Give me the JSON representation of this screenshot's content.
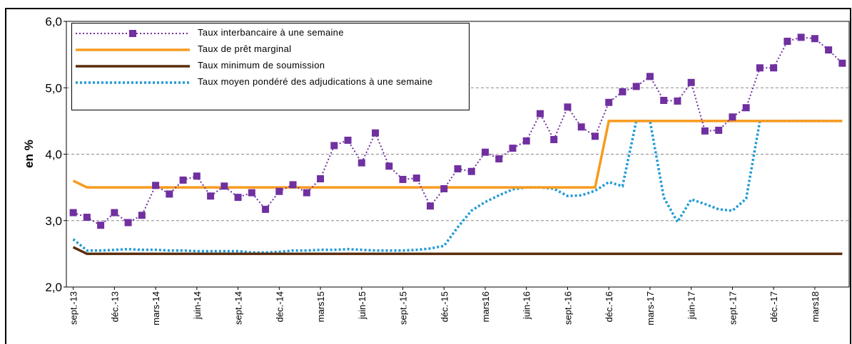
{
  "chart_data": {
    "type": "line",
    "y_label": "en %",
    "categories": [
      "sept.-13",
      null,
      null,
      "déc.-13",
      null,
      null,
      "mars-14",
      null,
      null,
      "juin-14",
      null,
      null,
      "sept.-14",
      null,
      null,
      "déc.-14",
      null,
      null,
      "mars15",
      null,
      null,
      "juin-15",
      null,
      null,
      "sept.-15",
      null,
      null,
      "déc.-15",
      null,
      null,
      "mars16",
      null,
      null,
      "juin-16",
      null,
      null,
      "sept.-16",
      null,
      null,
      "déc.-16",
      null,
      null,
      "mars-17",
      null,
      null,
      "juin-17",
      null,
      null,
      "sept.-17",
      null,
      null,
      "déc.-17",
      null,
      null,
      "mars18",
      null,
      null
    ],
    "ylim": [
      2,
      6
    ],
    "yticks": [
      {
        "value": 2,
        "label": "2,0"
      },
      {
        "value": 3,
        "label": "3,0"
      },
      {
        "value": 4,
        "label": "4,0"
      },
      {
        "value": 5,
        "label": "5,0"
      },
      {
        "value": 6,
        "label": "6,0"
      }
    ],
    "grid": true,
    "series": [
      {
        "name": "Taux interbancaire à une semaine",
        "color": "#7030a0",
        "style": "dotted-markers",
        "values": [
          3.12,
          3.05,
          2.93,
          3.12,
          2.97,
          3.08,
          3.53,
          3.4,
          3.61,
          3.67,
          3.37,
          3.52,
          3.35,
          3.42,
          3.17,
          3.44,
          3.54,
          3.42,
          3.63,
          4.13,
          4.21,
          3.87,
          4.32,
          3.82,
          3.62,
          3.64,
          3.22,
          3.48,
          3.78,
          3.74,
          4.03,
          3.93,
          4.09,
          4.2,
          4.61,
          4.22,
          4.71,
          4.41,
          4.27,
          4.78,
          4.94,
          5.02,
          5.17,
          4.81,
          4.8,
          5.08,
          4.35,
          4.36,
          4.56,
          4.7,
          5.3,
          5.3,
          5.7,
          5.76,
          5.74,
          5.57,
          5.37
        ]
      },
      {
        "name": "Taux de prêt marginal",
        "color": "#f79b1e",
        "style": "solid",
        "values": [
          3.6,
          3.5,
          3.5,
          3.5,
          3.5,
          3.5,
          3.5,
          3.5,
          3.5,
          3.5,
          3.5,
          3.5,
          3.5,
          3.5,
          3.5,
          3.5,
          3.5,
          3.5,
          3.5,
          3.5,
          3.5,
          3.5,
          3.5,
          3.5,
          3.5,
          3.5,
          3.5,
          3.5,
          3.5,
          3.5,
          3.5,
          3.5,
          3.5,
          3.5,
          3.5,
          3.5,
          3.5,
          3.5,
          3.5,
          4.5,
          4.5,
          4.5,
          4.5,
          4.5,
          4.5,
          4.5,
          4.5,
          4.5,
          4.5,
          4.5,
          4.5,
          4.5,
          4.5,
          4.5,
          4.5,
          4.5,
          4.5
        ]
      },
      {
        "name": "Taux minimum de soumission",
        "color": "#5a2d0c",
        "style": "solid",
        "values": [
          2.6,
          2.5,
          2.5,
          2.5,
          2.5,
          2.5,
          2.5,
          2.5,
          2.5,
          2.5,
          2.5,
          2.5,
          2.5,
          2.5,
          2.5,
          2.5,
          2.5,
          2.5,
          2.5,
          2.5,
          2.5,
          2.5,
          2.5,
          2.5,
          2.5,
          2.5,
          2.5,
          2.5,
          2.5,
          2.5,
          2.5,
          2.5,
          2.5,
          2.5,
          2.5,
          2.5,
          2.5,
          2.5,
          2.5,
          2.5,
          2.5,
          2.5,
          2.5,
          2.5,
          2.5,
          2.5,
          2.5,
          2.5,
          2.5,
          2.5,
          2.5,
          2.5,
          2.5,
          2.5,
          2.5,
          2.5,
          2.5
        ]
      },
      {
        "name": "Taux moyen pondéré des adjudications à une semaine",
        "color": "#1f9ad6",
        "style": "dotted",
        "values": [
          2.72,
          2.55,
          2.55,
          2.56,
          2.57,
          2.56,
          2.56,
          2.55,
          2.55,
          2.54,
          2.54,
          2.54,
          2.54,
          2.52,
          2.52,
          2.53,
          2.55,
          2.55,
          2.56,
          2.56,
          2.57,
          2.56,
          2.55,
          2.55,
          2.55,
          2.56,
          2.58,
          2.62,
          2.9,
          3.15,
          3.28,
          3.38,
          3.47,
          3.5,
          3.5,
          3.48,
          3.37,
          3.38,
          3.45,
          3.58,
          3.52,
          4.5,
          4.5,
          3.35,
          2.98,
          3.32,
          3.25,
          3.17,
          3.15,
          3.33,
          4.5,
          4.5,
          4.5,
          4.5,
          4.5,
          4.5,
          4.5
        ]
      }
    ]
  }
}
